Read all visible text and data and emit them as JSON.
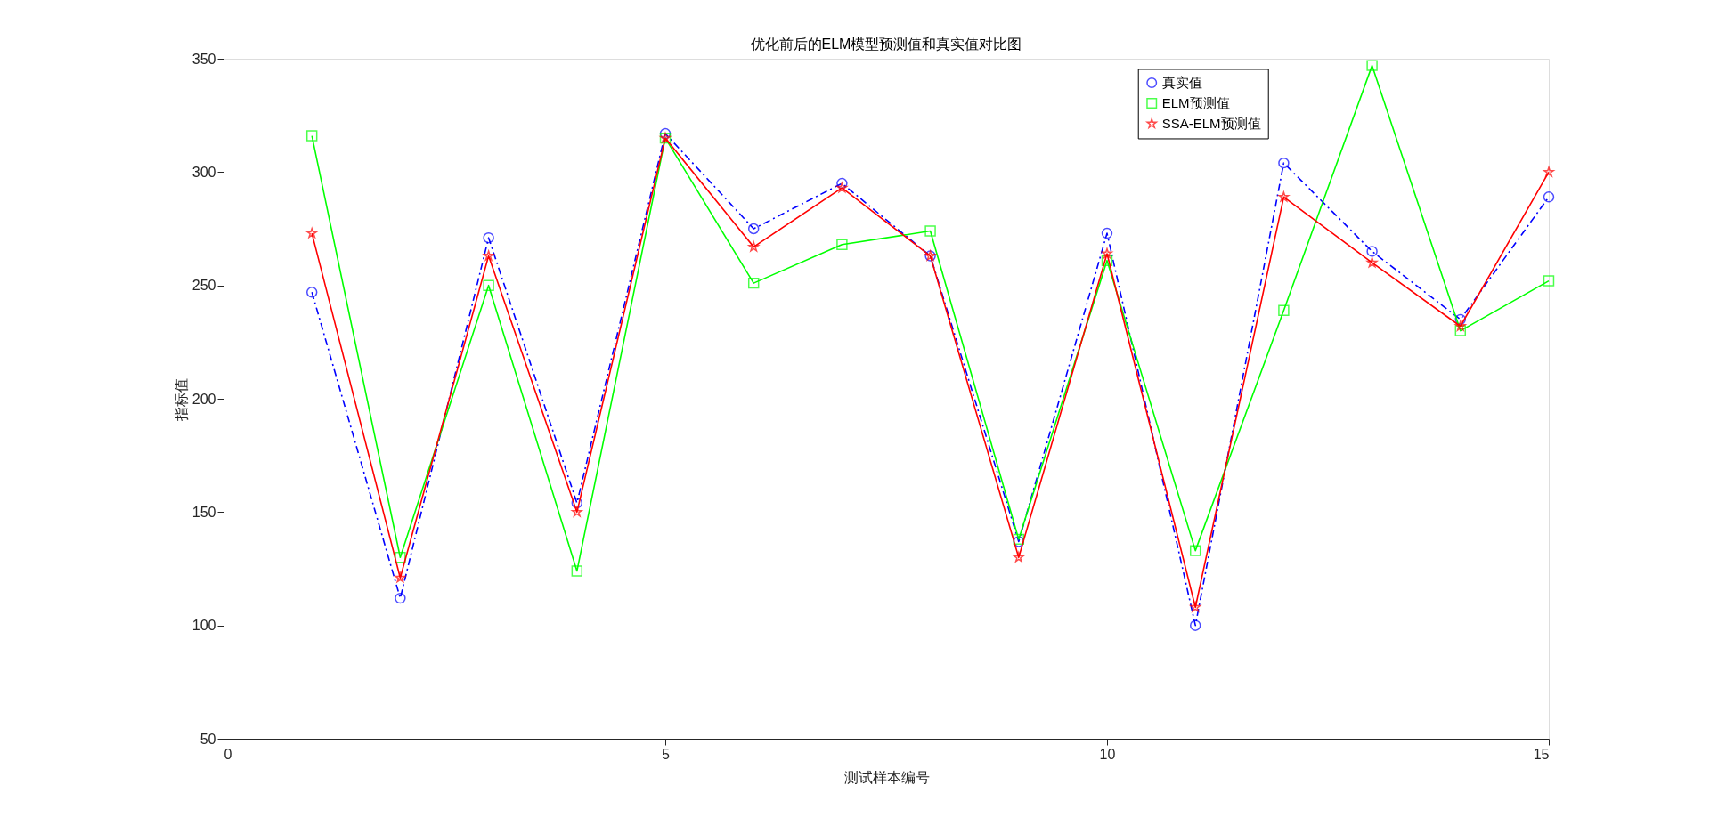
{
  "chart_data": {
    "type": "line",
    "title": "优化前后的ELM模型预测值和真实值对比图",
    "xlabel": "测试样本编号",
    "ylabel": "指标值",
    "x": [
      1,
      2,
      3,
      4,
      5,
      6,
      7,
      8,
      9,
      10,
      11,
      12,
      13,
      14,
      15
    ],
    "xlim": [
      0,
      15
    ],
    "xticks": [
      0,
      5,
      10,
      15
    ],
    "ylim": [
      50,
      350
    ],
    "yticks": [
      50,
      100,
      150,
      200,
      250,
      300,
      350
    ],
    "legend": "top right",
    "series": [
      {
        "name": "真实值",
        "color": "#0000ff",
        "marker": "circle",
        "line_style": "dashed",
        "values": [
          247,
          112,
          271,
          154,
          317,
          275,
          295,
          263,
          137,
          273,
          100,
          304,
          265,
          235,
          289
        ]
      },
      {
        "name": "ELM预测值",
        "color": "#00ff00",
        "marker": "square",
        "line_style": "solid",
        "values": [
          316,
          130,
          250,
          124,
          315,
          251,
          268,
          274,
          138,
          261,
          133,
          239,
          347,
          230,
          252
        ]
      },
      {
        "name": "SSA-ELM预测值",
        "color": "#ff0000",
        "marker": "star",
        "line_style": "solid",
        "values": [
          273,
          121,
          263,
          150,
          315,
          267,
          293,
          263,
          130,
          264,
          108,
          289,
          260,
          232,
          300
        ]
      }
    ]
  }
}
